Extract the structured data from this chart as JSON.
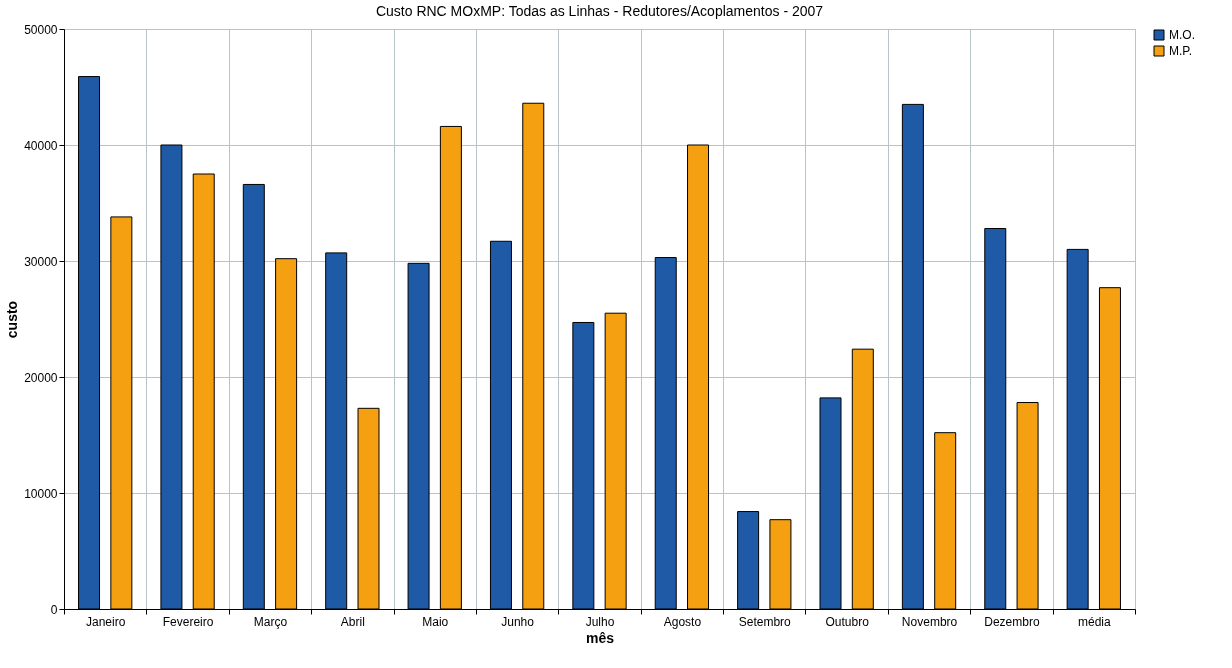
{
  "chart_data": {
    "type": "bar",
    "title": "Custo RNC MOxMP: Todas as Linhas - Redutores/Acoplamentos  - 2007",
    "xlabel": "mês",
    "ylabel": "custo",
    "categories": [
      "Janeiro",
      "Fevereiro",
      "Março",
      "Abril",
      "Maio",
      "Junho",
      "Julho",
      "Agosto",
      "Setembro",
      "Outubro",
      "Novembro",
      "Dezembro",
      "média"
    ],
    "series": [
      {
        "name": "M.O.",
        "color": "#1f5aa6",
        "values": [
          45900,
          40000,
          36600,
          30700,
          29800,
          31700,
          24700,
          30300,
          8400,
          18200,
          43500,
          32800,
          31000
        ]
      },
      {
        "name": "M.P.",
        "color": "#f5a011",
        "values": [
          33800,
          37500,
          30200,
          17300,
          41600,
          43600,
          25500,
          40000,
          7700,
          22400,
          15200,
          17800,
          27700
        ]
      }
    ],
    "ylim": [
      0,
      50000
    ],
    "yticks": [
      0,
      10000,
      20000,
      30000,
      40000,
      50000
    ],
    "grid": true,
    "legend": "right"
  }
}
